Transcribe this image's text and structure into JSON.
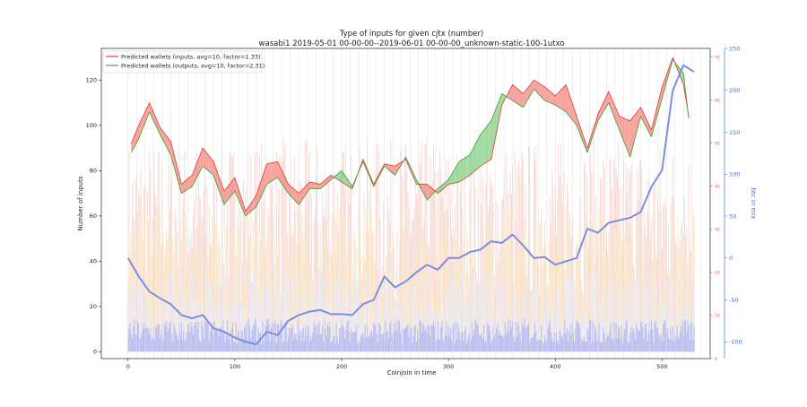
{
  "chart_data": {
    "type": "line",
    "title": "Type of inputs for given cjtx (number)",
    "subtitle": "wasabi1 2019-05-01 00-00-00--2019-06-01 00-00-00_unknown-static-100-1utxo",
    "xlabel": "Coinjoin in time",
    "ylabel": "Number of inputs",
    "y2label": "btc in mix",
    "xlim": [
      -25,
      545
    ],
    "ylim": [
      -3,
      134
    ],
    "y2lim": [
      -120,
      250
    ],
    "y3lim": [
      0,
      72
    ],
    "xticks": [
      0,
      100,
      200,
      300,
      400,
      500
    ],
    "yticks": [
      0,
      20,
      40,
      60,
      80,
      100,
      120
    ],
    "y2ticks": [
      -100,
      -50,
      0,
      50,
      100,
      150,
      200,
      250
    ],
    "y3ticks": [
      0,
      10,
      20,
      30,
      40,
      50,
      60,
      70
    ],
    "grid": "vertical-lines",
    "legend_position": "top-left",
    "series": [
      {
        "name": "Predicted wallets (inputs, avg=10, factor=1.33)",
        "color": "#e8473f",
        "axis": "right-red",
        "x": [
          3,
          10,
          20,
          30,
          40,
          50,
          60,
          70,
          80,
          90,
          100,
          110,
          120,
          130,
          140,
          150,
          160,
          170,
          180,
          190,
          200,
          210,
          220,
          230,
          240,
          250,
          260,
          270,
          280,
          290,
          300,
          310,
          320,
          330,
          340,
          350,
          360,
          370,
          380,
          390,
          400,
          410,
          420,
          430,
          440,
          450,
          460,
          470,
          480,
          490,
          500,
          510,
          520,
          525
        ],
        "values": [
          92,
          100,
          110,
          99,
          93,
          74,
          78,
          90,
          84,
          71,
          77,
          62,
          69,
          83,
          84,
          74,
          70,
          75,
          74,
          78,
          75,
          72,
          85,
          74,
          83,
          82,
          85,
          74,
          74,
          70,
          74,
          75,
          78,
          82,
          85,
          109,
          118,
          114,
          120,
          117,
          113,
          118,
          104,
          90,
          105,
          115,
          104,
          102,
          108,
          98,
          117,
          130,
          118,
          104
        ]
      },
      {
        "name": "Predicted wallets (outputs, avg=10, factor=2.31)",
        "color": "#45a845",
        "axis": "right-red",
        "x": [
          3,
          10,
          20,
          30,
          40,
          50,
          60,
          70,
          80,
          90,
          100,
          110,
          120,
          130,
          140,
          150,
          160,
          170,
          180,
          190,
          200,
          210,
          220,
          230,
          240,
          250,
          260,
          270,
          280,
          290,
          300,
          310,
          320,
          330,
          340,
          350,
          360,
          370,
          380,
          390,
          400,
          410,
          420,
          430,
          440,
          450,
          460,
          470,
          480,
          490,
          500,
          510,
          520,
          525
        ],
        "values": [
          88,
          94,
          106,
          96,
          87,
          70,
          73,
          82,
          78,
          65,
          71,
          60,
          64,
          74,
          77,
          70,
          65,
          72,
          72,
          76,
          80,
          73,
          84,
          73,
          82,
          78,
          86,
          76,
          67,
          72,
          76,
          84,
          87,
          96,
          102,
          114,
          111,
          108,
          116,
          111,
          109,
          106,
          100,
          88,
          102,
          110,
          98,
          86,
          104,
          95,
          112,
          129,
          123,
          103
        ]
      },
      {
        "name": "",
        "color": "#7b8fe0",
        "axis": "right-blue",
        "x": [
          0,
          10,
          20,
          30,
          40,
          50,
          60,
          70,
          80,
          90,
          100,
          110,
          120,
          130,
          140,
          150,
          160,
          170,
          180,
          190,
          200,
          210,
          220,
          230,
          240,
          250,
          260,
          270,
          280,
          290,
          300,
          310,
          320,
          330,
          340,
          350,
          360,
          370,
          380,
          390,
          400,
          410,
          420,
          430,
          440,
          450,
          460,
          470,
          480,
          490,
          500,
          510,
          520,
          530
        ],
        "values": [
          0,
          -22,
          -40,
          -48,
          -55,
          -68,
          -72,
          -68,
          -84,
          -88,
          -95,
          -100,
          -103,
          -88,
          -92,
          -75,
          -68,
          -64,
          -62,
          -67,
          -67,
          -68,
          -55,
          -50,
          -22,
          -35,
          -28,
          -17,
          -8,
          -14,
          0,
          0,
          7,
          10,
          20,
          18,
          28,
          15,
          0,
          1,
          -8,
          -4,
          0,
          35,
          30,
          42,
          45,
          48,
          55,
          85,
          105,
          200,
          230,
          222
        ]
      }
    ],
    "bar_layers": [
      {
        "name": "",
        "color": "#a9b1f5",
        "axis": "left",
        "typical_height": 10
      },
      {
        "name": "",
        "color": "#e9ebfb",
        "axis": "left",
        "typical_height": 25
      },
      {
        "name": "",
        "color": "#fbe7c2",
        "axis": "left",
        "typical_height": 45
      },
      {
        "name": "",
        "color": "#f8d4cf",
        "axis": "left",
        "typical_height": 65
      }
    ]
  }
}
